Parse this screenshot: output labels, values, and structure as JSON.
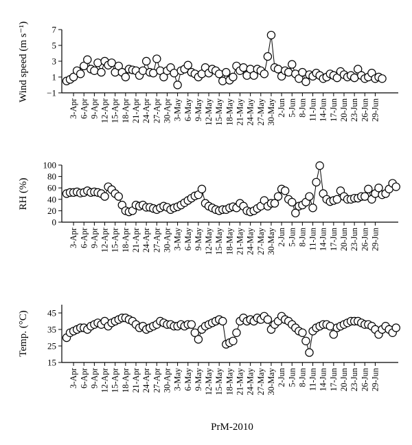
{
  "figure": {
    "xlabel": "PrM-2010"
  },
  "chart_data": [
    {
      "type": "line",
      "ylabel": "Wind speed (m s⁻¹)",
      "ylim": [
        -1,
        7
      ],
      "yticks": [
        -1,
        1,
        3,
        5,
        7
      ],
      "x_tick_labels": [
        "3-Apr",
        "6-Apr",
        "9-Apr",
        "12-Apr",
        "15-Apr",
        "18-Apr",
        "21-Apr",
        "24-Apr",
        "27-Apr",
        "30-Apr",
        "3-May",
        "6-May",
        "9-May",
        "12-May",
        "15-May",
        "18-May",
        "21-May",
        "24-May",
        "27-May",
        "30-May",
        "2-Jun",
        "5-Jun",
        "8-Jun",
        "11-Jun",
        "14-Jun",
        "17-Jun",
        "20-Jun",
        "23-Jun",
        "26-Jun",
        "29-Jun"
      ],
      "x_start": "1-Apr",
      "values": [
        0.5,
        0.7,
        1.0,
        1.8,
        1.4,
        2.4,
        3.2,
        2.0,
        1.8,
        2.8,
        1.6,
        3.0,
        2.5,
        2.8,
        1.6,
        2.4,
        1.6,
        1.0,
        2.0,
        1.9,
        1.8,
        1.2,
        1.8,
        3.0,
        1.6,
        1.5,
        3.3,
        1.8,
        1.0,
        1.8,
        2.2,
        1.5,
        0.0,
        1.8,
        2.0,
        2.5,
        1.6,
        1.4,
        1.0,
        1.4,
        2.2,
        1.5,
        2.0,
        1.8,
        1.4,
        0.5,
        1.6,
        0.6,
        1.0,
        2.4,
        1.8,
        2.2,
        1.2,
        2.0,
        1.2,
        2.0,
        1.8,
        1.4,
        3.6,
        6.3,
        2.2,
        2.0,
        1.1,
        1.8,
        1.6,
        2.6,
        1.4,
        0.8,
        1.6,
        0.4,
        1.3,
        1.1,
        1.5,
        1.2,
        0.8,
        1.0,
        1.4,
        1.2,
        0.9,
        1.7,
        1.3,
        1.0,
        1.2,
        0.9,
        2.0,
        1.2,
        0.8,
        1.0,
        1.5,
        0.8,
        1.0,
        0.8
      ]
    },
    {
      "type": "line",
      "ylabel": "RH (%)",
      "ylim": [
        0,
        100
      ],
      "yticks": [
        0,
        20,
        40,
        60,
        80,
        100
      ],
      "x_tick_labels": [
        "3-Apr",
        "6-Apr",
        "9-Apr",
        "12-Apr",
        "15-Apr",
        "18-Apr",
        "21-Apr",
        "24-Apr",
        "27-Apr",
        "30-Apr",
        "3-May",
        "6-May",
        "9-May",
        "12-May",
        "15-May",
        "18-May",
        "21-May",
        "24-May",
        "27-May",
        "30-May",
        "2-Jun",
        "5-Jun",
        "8-Jun",
        "11-Jun",
        "14-Jun",
        "17-Jun",
        "20-Jun",
        "23-Jun",
        "26-Jun",
        "29-Jun"
      ],
      "x_start": "1-Apr",
      "values": [
        50,
        52,
        52,
        53,
        51,
        52,
        55,
        52,
        53,
        52,
        50,
        45,
        62,
        57,
        50,
        45,
        30,
        20,
        18,
        20,
        30,
        28,
        30,
        26,
        26,
        24,
        22,
        25,
        28,
        26,
        22,
        25,
        27,
        30,
        34,
        38,
        42,
        46,
        48,
        58,
        33,
        28,
        25,
        22,
        20,
        22,
        22,
        25,
        27,
        25,
        33,
        28,
        20,
        18,
        20,
        24,
        28,
        38,
        28,
        33,
        33,
        45,
        58,
        55,
        40,
        35,
        16,
        28,
        30,
        35,
        45,
        25,
        70,
        99,
        50,
        40,
        36,
        38,
        40,
        55,
        45,
        40,
        40,
        42,
        42,
        45,
        45,
        58,
        40,
        50,
        60,
        48,
        50,
        58,
        68,
        62
      ]
    },
    {
      "type": "line",
      "ylabel": "Temp. (°C)",
      "ylim": [
        15,
        50
      ],
      "yticks": [
        15,
        25,
        35,
        45
      ],
      "x_tick_labels": [
        "3-Apr",
        "6-Apr",
        "9-Apr",
        "12-Apr",
        "15-Apr",
        "18-Apr",
        "21-Apr",
        "24-Apr",
        "27-Apr",
        "30-Apr",
        "3-May",
        "6-May",
        "9-May",
        "12-May",
        "15-May",
        "18-May",
        "21-May",
        "24-May",
        "27-May",
        "30-May",
        "2-Jun",
        "5-Jun",
        "8-Jun",
        "11-Jun",
        "14-Jun",
        "17-Jun",
        "20-Jun",
        "23-Jun",
        "26-Jun",
        "29-Jun"
      ],
      "x_start": "1-Apr",
      "values": [
        30,
        33,
        34,
        35,
        36,
        36,
        35,
        37,
        38,
        39,
        38,
        40,
        37,
        39,
        40,
        41,
        42,
        42,
        41,
        40,
        38,
        36,
        37,
        35,
        36,
        37,
        38,
        40,
        39,
        38,
        38,
        37,
        37,
        38,
        37,
        38,
        38,
        33,
        29,
        35,
        37,
        38,
        39,
        40,
        41,
        40,
        26,
        27,
        28,
        33,
        40,
        42,
        40,
        41,
        40,
        42,
        41,
        43,
        41,
        35,
        38,
        40,
        43,
        41,
        40,
        38,
        36,
        34,
        33,
        28,
        21,
        34,
        36,
        37,
        38,
        38,
        37,
        32,
        36,
        37,
        38,
        39,
        40,
        40,
        40,
        39,
        38,
        38,
        37,
        35,
        32,
        35,
        37,
        35,
        33,
        36
      ]
    }
  ]
}
